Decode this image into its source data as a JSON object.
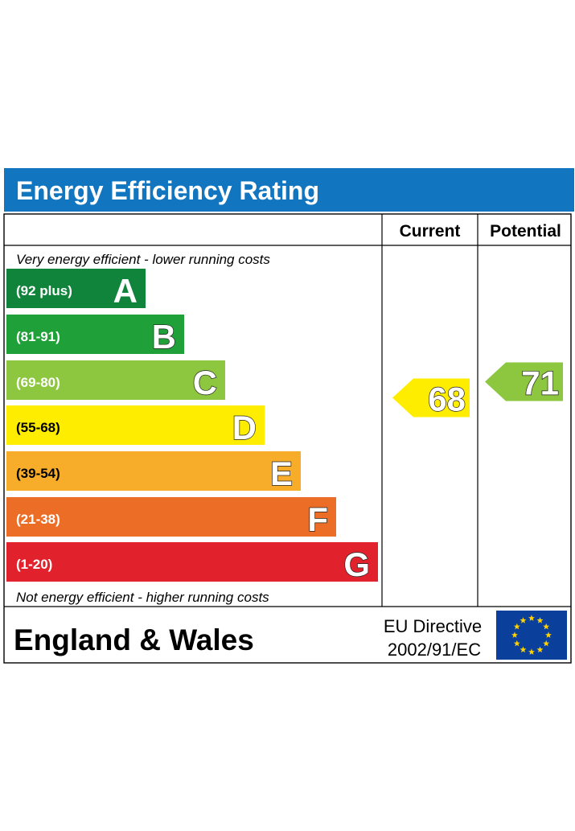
{
  "title": "Energy Efficiency Rating",
  "columns": {
    "current": "Current",
    "potential": "Potential"
  },
  "top_note": "Very energy efficient - lower running costs",
  "bottom_note": "Not energy efficient - higher running costs",
  "footer": {
    "region": "England & Wales",
    "directive_line1": "EU Directive",
    "directive_line2": "2002/91/EC"
  },
  "colors": {
    "header_bg": "#1176bf",
    "eu_flag_bg": "#0b3f9c",
    "eu_star": "#ffd200"
  },
  "chart_data": {
    "type": "bar",
    "categories": [
      "A",
      "B",
      "C",
      "D",
      "E",
      "F",
      "G"
    ],
    "bands": [
      {
        "letter": "A",
        "range": "(92 plus)",
        "color": "#11843c"
      },
      {
        "letter": "B",
        "range": "(81-91)",
        "color": "#20a038"
      },
      {
        "letter": "C",
        "range": "(69-80)",
        "color": "#8dc63f"
      },
      {
        "letter": "D",
        "range": "(55-68)",
        "color": "#ffed00"
      },
      {
        "letter": "E",
        "range": "(39-54)",
        "color": "#f7ad29"
      },
      {
        "letter": "F",
        "range": "(21-38)",
        "color": "#ec6e26"
      },
      {
        "letter": "G",
        "range": "(1-20)",
        "color": "#e1212b"
      }
    ],
    "current": {
      "value": 68,
      "band": "D",
      "color": "#ffed00"
    },
    "potential": {
      "value": 71,
      "band": "C",
      "color": "#8dc63f"
    }
  }
}
